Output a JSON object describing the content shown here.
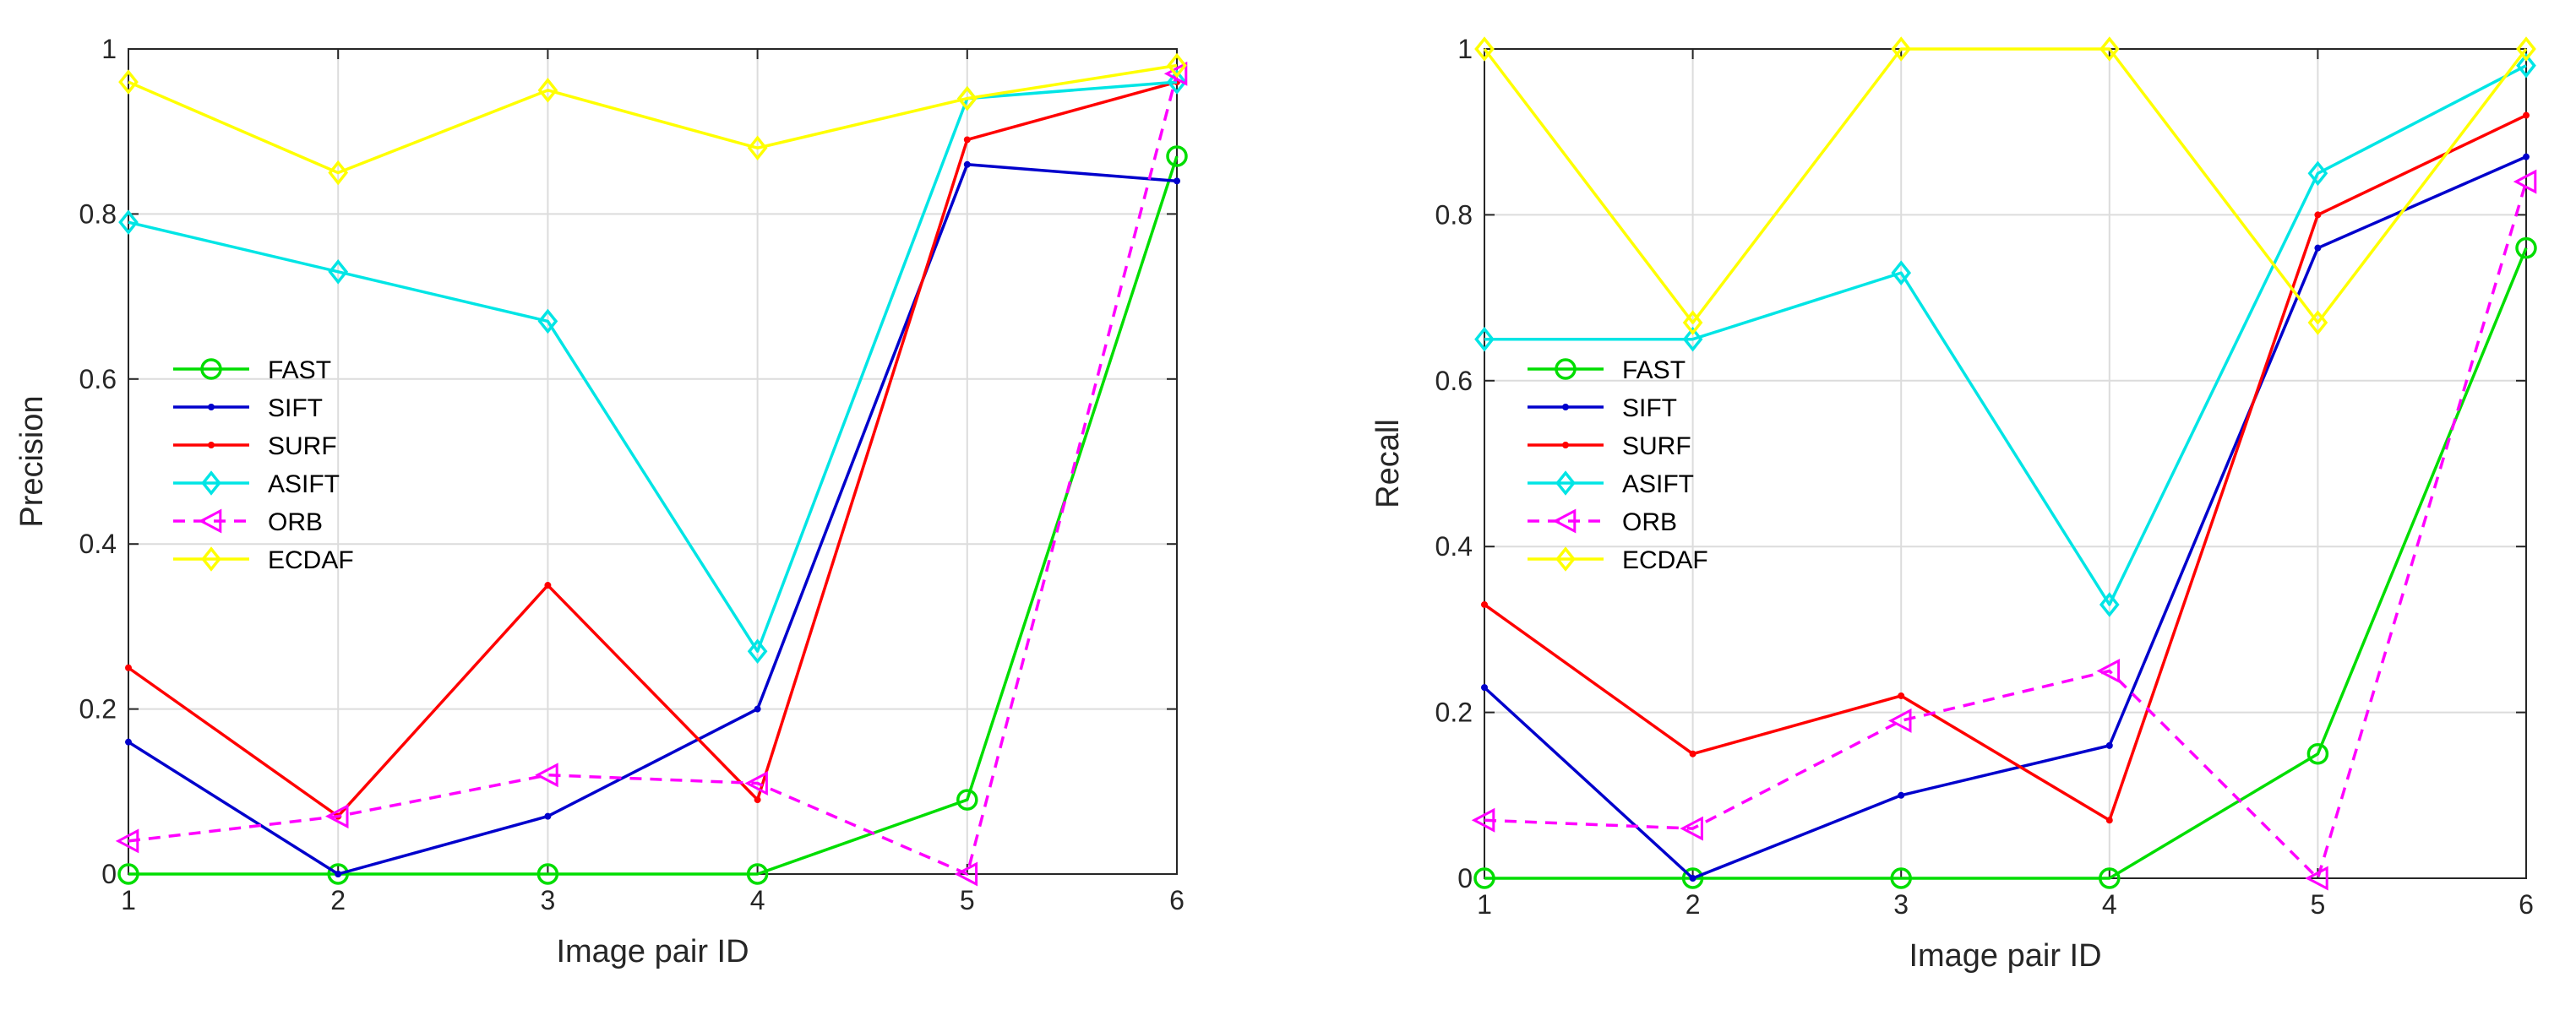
{
  "chart_data": [
    {
      "type": "line",
      "title": "",
      "xlabel": "Image pair ID",
      "ylabel": "Precision",
      "x": [
        1,
        2,
        3,
        4,
        5,
        6
      ],
      "xlim": [
        1,
        6
      ],
      "ylim": [
        0,
        1
      ],
      "xticks": [
        "1",
        "2",
        "3",
        "4",
        "5",
        "6"
      ],
      "yticks": [
        "0",
        "0.2",
        "0.4",
        "0.6",
        "0.8",
        "1"
      ],
      "grid": true,
      "legend_position": "center-left",
      "series": [
        {
          "name": "FAST",
          "color": "#00dd00",
          "marker": "circle",
          "dash": "solid",
          "values": [
            0,
            0,
            0,
            0,
            0.09,
            0.87
          ]
        },
        {
          "name": "SIFT",
          "color": "#0000cc",
          "marker": "dot",
          "dash": "solid",
          "values": [
            0.16,
            0,
            0.07,
            0.2,
            0.86,
            0.84
          ]
        },
        {
          "name": "SURF",
          "color": "#ff0000",
          "marker": "dot",
          "dash": "solid",
          "values": [
            0.25,
            0.07,
            0.35,
            0.09,
            0.89,
            0.96
          ]
        },
        {
          "name": "ASIFT",
          "color": "#00e5e5",
          "marker": "diamond",
          "dash": "solid",
          "values": [
            0.79,
            0.73,
            0.67,
            0.27,
            0.94,
            0.96
          ]
        },
        {
          "name": "ORB",
          "color": "#ff00ff",
          "marker": "triangle-left",
          "dash": "dashed",
          "values": [
            0.04,
            0.07,
            0.12,
            0.11,
            0,
            0.97
          ]
        },
        {
          "name": "ECDAF",
          "color": "#ffff00",
          "marker": "diamond",
          "dash": "solid",
          "values": [
            0.96,
            0.85,
            0.95,
            0.88,
            0.94,
            0.98
          ]
        }
      ]
    },
    {
      "type": "line",
      "title": "",
      "xlabel": "Image pair ID",
      "ylabel": "Recall",
      "x": [
        1,
        2,
        3,
        4,
        5,
        6
      ],
      "xlim": [
        1,
        6
      ],
      "ylim": [
        0,
        1
      ],
      "xticks": [
        "1",
        "2",
        "3",
        "4",
        "5",
        "6"
      ],
      "yticks": [
        "0",
        "0.2",
        "0.4",
        "0.6",
        "0.8",
        "1"
      ],
      "grid": true,
      "legend_position": "center-left",
      "series": [
        {
          "name": "FAST",
          "color": "#00dd00",
          "marker": "circle",
          "dash": "solid",
          "values": [
            0,
            0,
            0,
            0,
            0.15,
            0.76
          ]
        },
        {
          "name": "SIFT",
          "color": "#0000cc",
          "marker": "dot",
          "dash": "solid",
          "values": [
            0.23,
            0,
            0.1,
            0.16,
            0.76,
            0.87
          ]
        },
        {
          "name": "SURF",
          "color": "#ff0000",
          "marker": "dot",
          "dash": "solid",
          "values": [
            0.33,
            0.15,
            0.22,
            0.07,
            0.8,
            0.92
          ]
        },
        {
          "name": "ASIFT",
          "color": "#00e5e5",
          "marker": "diamond",
          "dash": "solid",
          "values": [
            0.65,
            0.65,
            0.73,
            0.33,
            0.85,
            0.98
          ]
        },
        {
          "name": "ORB",
          "color": "#ff00ff",
          "marker": "triangle-left",
          "dash": "dashed",
          "values": [
            0.07,
            0.06,
            0.19,
            0.25,
            0,
            0.84
          ]
        },
        {
          "name": "ECDAF",
          "color": "#ffff00",
          "marker": "diamond",
          "dash": "solid",
          "values": [
            1,
            0.67,
            1,
            1,
            0.67,
            1
          ]
        }
      ]
    }
  ]
}
